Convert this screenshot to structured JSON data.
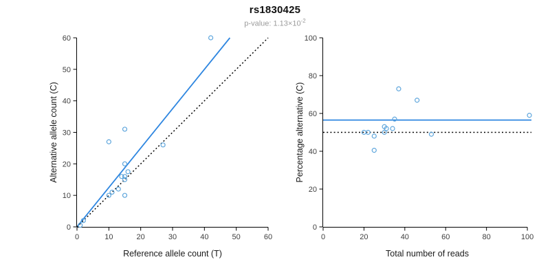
{
  "header": {
    "title": "rs1830425",
    "subtitle_main": "p-value: 1.13×10",
    "subtitle_exp": "-2"
  },
  "colors": {
    "fit_blue": "#2E86E0",
    "point_blue": "#5DA5DC",
    "dotted_black": "#000000",
    "axis_black": "#000000"
  },
  "chart_data": [
    {
      "type": "scatter",
      "panel": "left",
      "xlabel": "Reference allele count (T)",
      "ylabel": "Alternative allele count (C)",
      "xlim": [
        0,
        60
      ],
      "ylim": [
        0,
        60
      ],
      "xticks": [
        0,
        10,
        20,
        30,
        40,
        50,
        60
      ],
      "yticks": [
        0,
        10,
        20,
        30,
        40,
        50,
        60
      ],
      "grid": false,
      "legend": false,
      "points": [
        [
          1,
          0.5
        ],
        [
          2,
          2
        ],
        [
          10,
          10
        ],
        [
          11,
          11
        ],
        [
          10,
          27
        ],
        [
          13,
          12
        ],
        [
          14,
          16
        ],
        [
          15,
          16
        ],
        [
          15,
          15
        ],
        [
          15,
          20
        ],
        [
          15,
          10
        ],
        [
          15,
          31
        ],
        [
          16,
          17.5
        ],
        [
          27,
          26
        ],
        [
          42,
          60
        ]
      ],
      "lines": [
        {
          "name": "fit-line",
          "style": "solid",
          "color_key": "fit_blue",
          "from": [
            0,
            0
          ],
          "to": [
            48,
            60
          ]
        },
        {
          "name": "identity-line",
          "style": "dotted",
          "color_key": "dotted_black",
          "from": [
            0,
            0
          ],
          "to": [
            60,
            60
          ]
        }
      ]
    },
    {
      "type": "scatter",
      "panel": "right",
      "xlabel": "Total number of reads",
      "ylabel": "Percentage alternative (C)",
      "xlim": [
        0,
        102
      ],
      "ylim": [
        0,
        100
      ],
      "xticks": [
        0,
        20,
        40,
        60,
        80,
        100
      ],
      "yticks": [
        0,
        20,
        40,
        60,
        80,
        100
      ],
      "grid": false,
      "legend": false,
      "points": [
        [
          20,
          50
        ],
        [
          22,
          50
        ],
        [
          25,
          48
        ],
        [
          25,
          40.5
        ],
        [
          30,
          50
        ],
        [
          30,
          53
        ],
        [
          31,
          52
        ],
        [
          34,
          52
        ],
        [
          35,
          57
        ],
        [
          37,
          73
        ],
        [
          46,
          67
        ],
        [
          53,
          49
        ],
        [
          101,
          59
        ]
      ],
      "lines": [
        {
          "name": "fit-line",
          "style": "solid",
          "color_key": "fit_blue",
          "from": [
            0,
            56.5
          ],
          "to": [
            102,
            56.5
          ]
        },
        {
          "name": "expected-line",
          "style": "dotted",
          "color_key": "dotted_black",
          "from": [
            0,
            50
          ],
          "to": [
            102,
            50
          ]
        }
      ]
    }
  ]
}
